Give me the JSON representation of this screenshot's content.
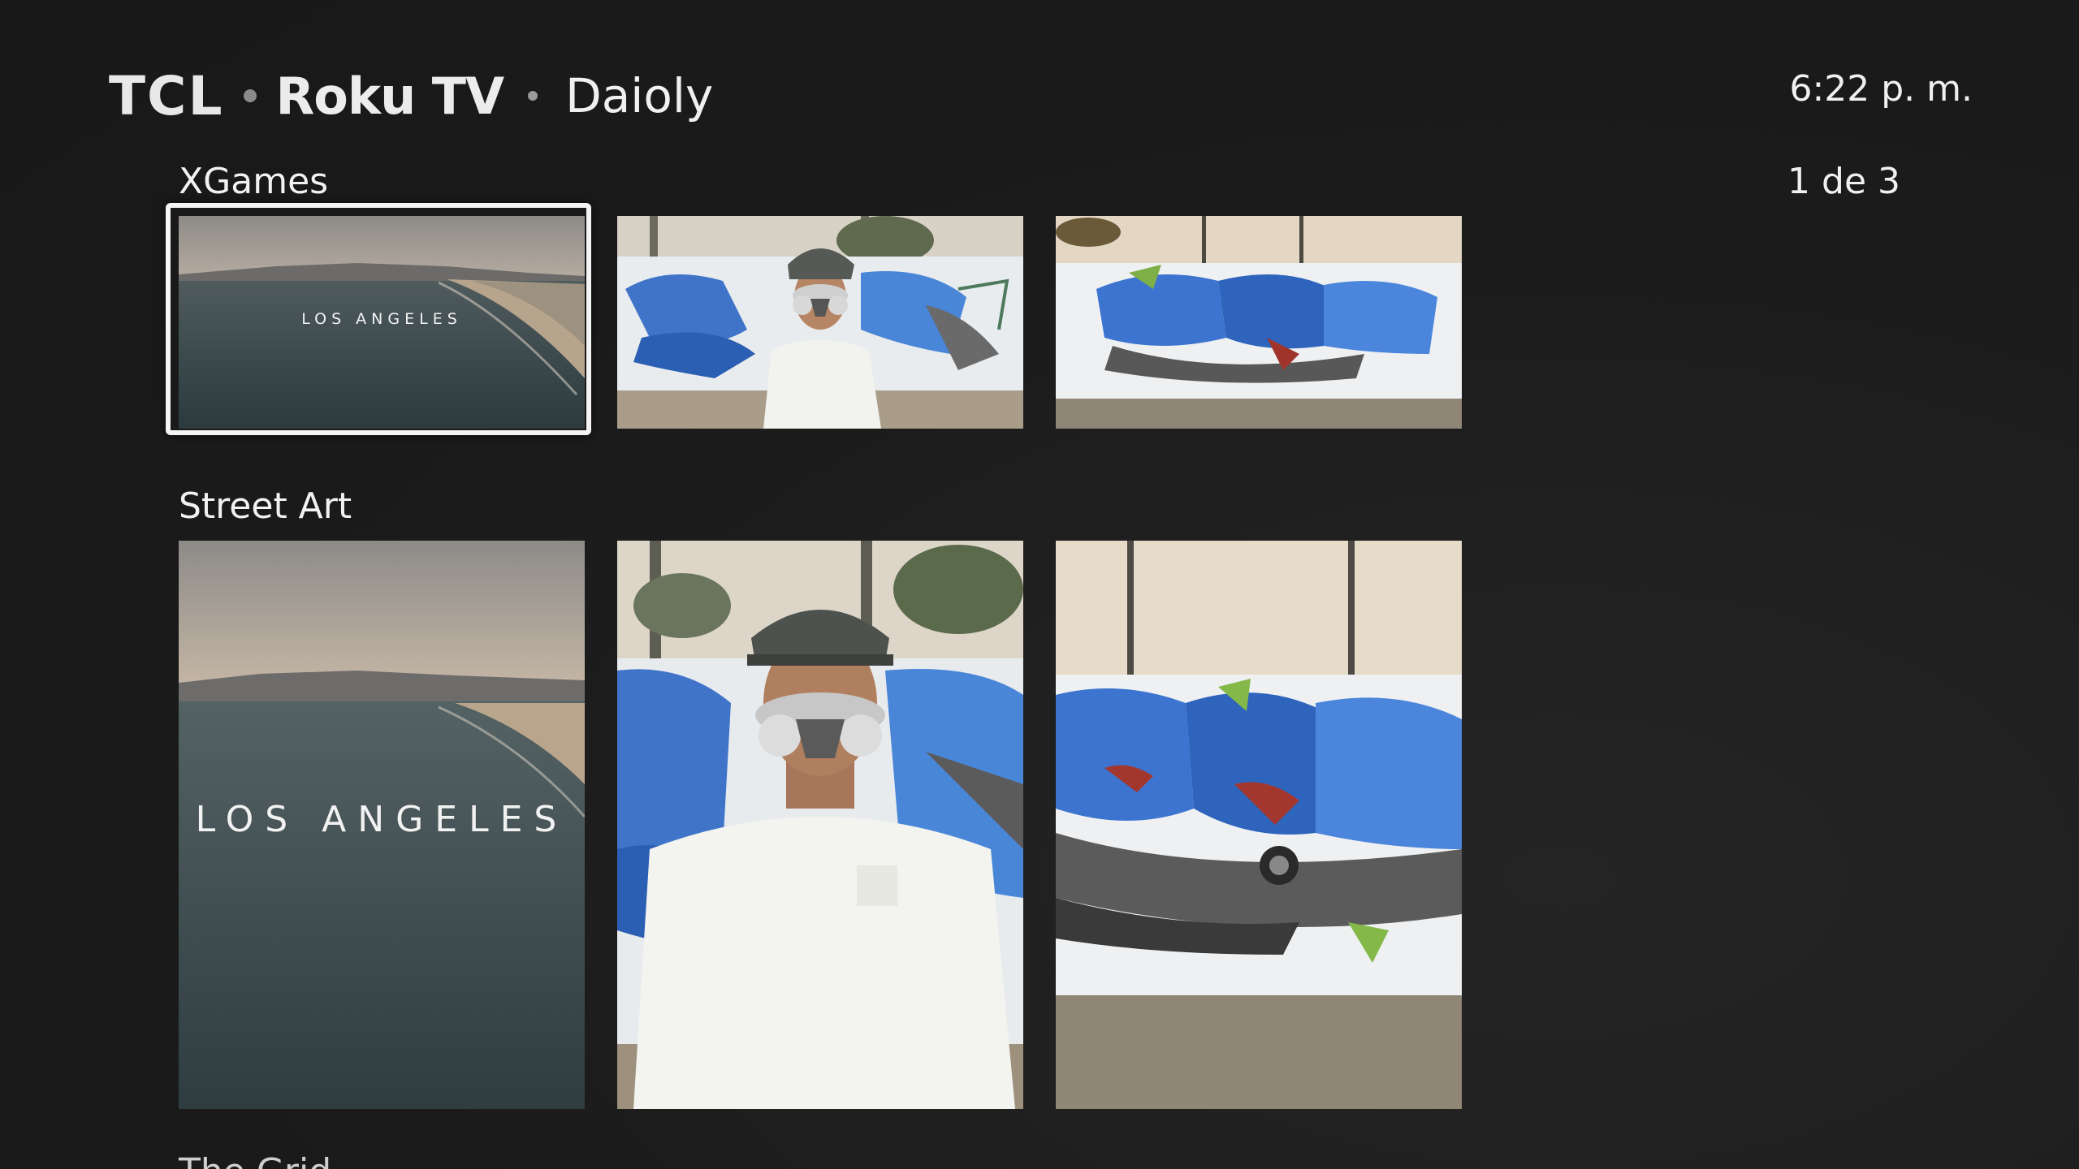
{
  "header": {
    "brand_tcl": "TCL",
    "brand_roku": "Roku TV",
    "channel_name": "Daioly",
    "clock": "6:22 p. m."
  },
  "rows": [
    {
      "title": "XGames",
      "page_indicator": "1 de 3",
      "tiles": [
        {
          "kind": "beach-aerial",
          "overlay": "LOS ANGELES",
          "focused": true
        },
        {
          "kind": "artist-portrait",
          "overlay": ""
        },
        {
          "kind": "graffiti-wall",
          "overlay": ""
        }
      ]
    },
    {
      "title": "Street Art",
      "tiles": [
        {
          "kind": "beach-aerial",
          "overlay": "LOS ANGELES"
        },
        {
          "kind": "artist-portrait",
          "overlay": ""
        },
        {
          "kind": "graffiti-wall",
          "overlay": ""
        }
      ]
    },
    {
      "title": "The Grid"
    }
  ],
  "colors": {
    "background": "#1b1b1b",
    "focus_ring": "#f4f4f4",
    "text": "#f2f2f2"
  }
}
